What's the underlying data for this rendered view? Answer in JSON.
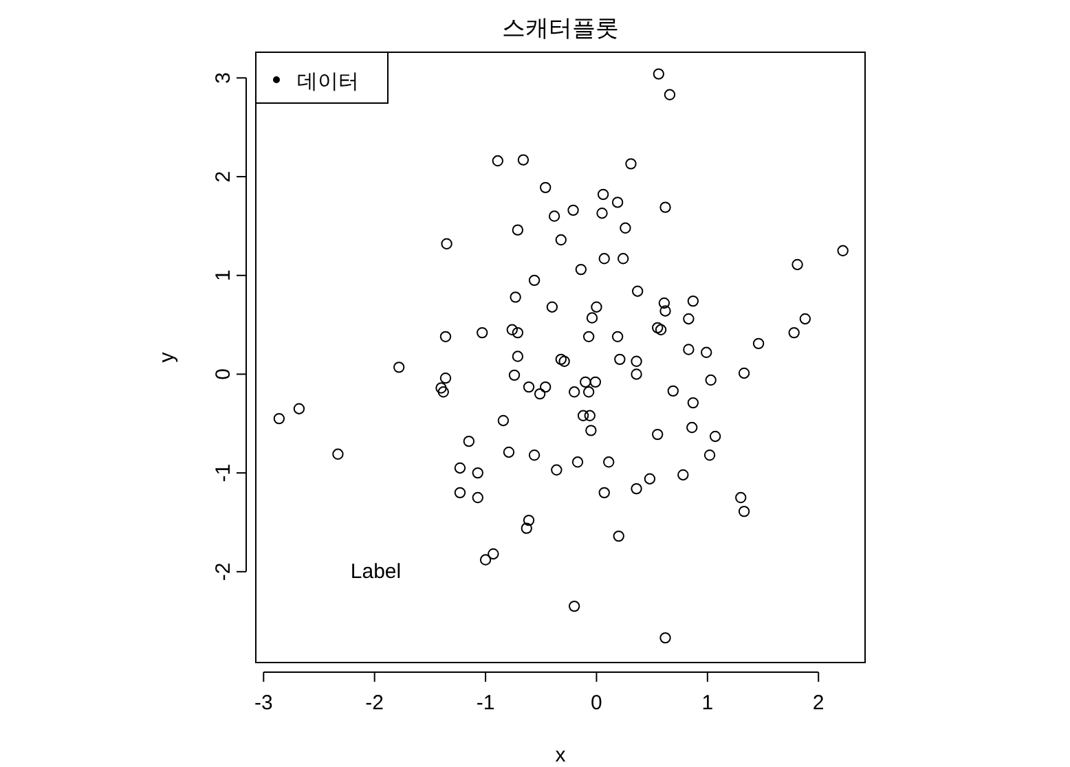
{
  "chart_data": {
    "type": "scatter",
    "title": "스캐터플롯",
    "xlabel": "x",
    "ylabel": "y",
    "xlim": [
      -3.07,
      2.42
    ],
    "ylim": [
      -2.92,
      3.26
    ],
    "xticks": [
      -3,
      -2,
      -1,
      0,
      1,
      2
    ],
    "yticks": [
      -2,
      -1,
      0,
      1,
      2,
      3
    ],
    "grid": false,
    "legend": "top left",
    "marker": "circle",
    "annotations": [
      "Label"
    ],
    "series": [
      {
        "name": "데이터",
        "color": "#000000",
        "x": [
          0.56,
          0.66,
          -0.89,
          -0.66,
          0.31,
          -0.46,
          0.06,
          0.19,
          -0.21,
          -0.38,
          0.05,
          0.62,
          0.26,
          -0.71,
          -0.32,
          -1.35,
          0.07,
          0.24,
          2.22,
          1.81,
          -0.14,
          -0.56,
          0.37,
          -0.73,
          0.87,
          0.61,
          -0.4,
          0,
          0.62,
          -0.04,
          0.83,
          1.88,
          -0.76,
          -0.71,
          0.55,
          0.58,
          -1.36,
          -1.03,
          -0.07,
          0.19,
          1.78,
          1.46,
          0.83,
          0.99,
          -0.71,
          -0.32,
          -0.29,
          0.21,
          0.36,
          -1.78,
          -0.74,
          0.36,
          1.33,
          1.03,
          -1.36,
          -0.61,
          -0.46,
          -0.1,
          -0.01,
          -1.4,
          -1.38,
          -0.51,
          -0.2,
          -0.07,
          0.69,
          -2.68,
          -2.86,
          0.87,
          -0.12,
          -0.06,
          -0.84,
          -0.05,
          0.86,
          0.55,
          1.07,
          -1.15,
          -2.33,
          -0.79,
          -0.56,
          1.02,
          -1.23,
          -0.17,
          0.11,
          -0.36,
          -1.07,
          0.78,
          0.48,
          0.36,
          0.07,
          -1.23,
          -1.07,
          1.3,
          1.33,
          -0.61,
          -0.63,
          0.2,
          -0.93,
          -1.0,
          -0.2,
          0.62
        ],
        "values": [
          3.04,
          2.83,
          2.16,
          2.17,
          2.13,
          1.89,
          1.82,
          1.74,
          1.66,
          1.6,
          1.63,
          1.69,
          1.48,
          1.46,
          1.36,
          1.32,
          1.17,
          1.17,
          1.25,
          1.11,
          1.06,
          0.95,
          0.84,
          0.78,
          0.74,
          0.72,
          0.68,
          0.68,
          0.64,
          0.57,
          0.56,
          0.56,
          0.45,
          0.42,
          0.47,
          0.45,
          0.38,
          0.42,
          0.38,
          0.38,
          0.42,
          0.31,
          0.25,
          0.22,
          0.18,
          0.15,
          0.13,
          0.15,
          0.13,
          0.07,
          -0.01,
          0,
          0.01,
          -0.06,
          -0.04,
          -0.13,
          -0.13,
          -0.08,
          -0.08,
          -0.14,
          -0.18,
          -0.2,
          -0.18,
          -0.18,
          -0.17,
          -0.35,
          -0.45,
          -0.29,
          -0.42,
          -0.42,
          -0.47,
          -0.57,
          -0.54,
          -0.61,
          -0.63,
          -0.68,
          -0.81,
          -0.79,
          -0.82,
          -0.82,
          -0.95,
          -0.89,
          -0.89,
          -0.97,
          -1.0,
          -1.02,
          -1.06,
          -1.16,
          -1.2,
          -1.2,
          -1.25,
          -1.25,
          -1.39,
          -1.48,
          -1.56,
          -1.64,
          -1.82,
          -1.88,
          -2.35,
          -2.67
        ]
      }
    ]
  }
}
